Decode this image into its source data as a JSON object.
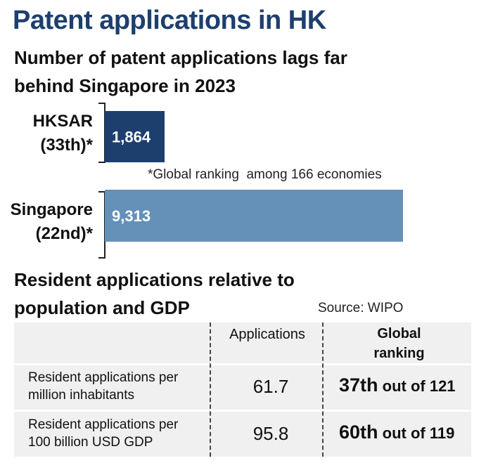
{
  "header": {
    "title": "Patent applications in HK",
    "subtitle": "Number of patent applications lags far behind Singapore in 2023"
  },
  "chart_data": {
    "type": "bar",
    "orientation": "horizontal",
    "title": "Number of patent applications lags far behind Singapore in 2023",
    "categories": [
      {
        "line1": "HKSAR",
        "line2": "(33th)*"
      },
      {
        "line1": "Singapore",
        "line2": "(22nd)*"
      }
    ],
    "values": [
      1864,
      9313
    ],
    "value_labels": [
      "1,864",
      "9,313"
    ],
    "colors": [
      "#1d3f6e",
      "#6591b8"
    ],
    "xlim": [
      0,
      9313
    ],
    "footnote": "*Global ranking  among 166 economies"
  },
  "table_section": {
    "heading": "Resident applications relative to population and GDP",
    "source": "Source: WIPO",
    "columns": {
      "applications": "Applications",
      "ranking_line1": "Global",
      "ranking_line2": "ranking"
    },
    "rows": [
      {
        "label_line1": "Resident applications per",
        "label_line2": "million inhabitants",
        "value": "61.7",
        "rank": "37th",
        "rank_suffix": " out of 121"
      },
      {
        "label_line1": "Resident applications per",
        "label_line2": "100 billion USD GDP",
        "value": "95.8",
        "rank": "60th",
        "rank_suffix": " out of 119"
      }
    ]
  }
}
